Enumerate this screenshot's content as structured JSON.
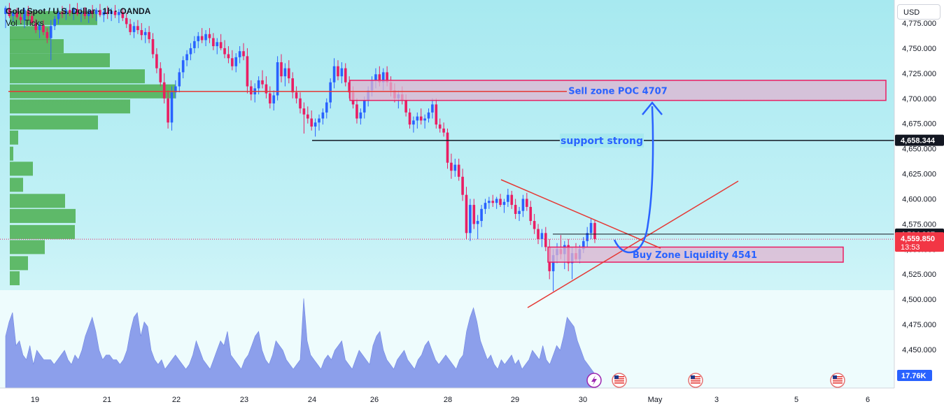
{
  "header": {
    "title": "Gold Spot / U.S. Dollar · 1h · OANDA",
    "indicator": "Vol · Ticks",
    "currency_button": "USD"
  },
  "colors": {
    "up": "#2962ff",
    "down": "#e91e63",
    "volume_profile": "#4caf50",
    "volume_area": "#7b8fe8",
    "zone_fill": "#e0b4d0",
    "zone_border": "#e91e63",
    "annotation_text": "#2962ff"
  },
  "chart_data": {
    "type": "candlestick",
    "symbol": "XAUUSD",
    "ylim": [
      4440,
      4790
    ],
    "y_ticks": [
      4450,
      4475,
      4500,
      4525,
      4550,
      4575,
      4600,
      4625,
      4650,
      4675,
      4700,
      4725,
      4750,
      4775
    ],
    "y_tick_labels": [
      "4,450.000",
      "4,475.000",
      "4,500.000",
      "4,525.000",
      "4,550.000",
      "4,575.000",
      "4,600.000",
      "4,625.000",
      "4,650.000",
      "4,675.000",
      "4,700.000",
      "4,725.000",
      "4,750.000",
      "4,775.000"
    ],
    "x_labels": [
      "19",
      "21",
      "22",
      "23",
      "24",
      "26",
      "28",
      "29",
      "30",
      "May",
      "3",
      "5",
      "6"
    ],
    "price_lines": [
      {
        "label": "4,658.344",
        "value": 4658.344,
        "style": "black"
      },
      {
        "label": "4,564.937",
        "value": 4564.937,
        "style": "black"
      },
      {
        "label": "4,559.850",
        "value": 4559.85,
        "style": "last",
        "countdown": "13:53"
      }
    ],
    "volume_label": "17.76K",
    "annotations": {
      "sell_zone": {
        "label": "Sell zone POC 4707",
        "top": 4718,
        "bottom": 4698
      },
      "buy_zone": {
        "label": "Buy Zone Liquidity 4541",
        "top": 4552,
        "bottom": 4537
      },
      "support": {
        "label": "support strong",
        "value": 4658
      },
      "poc_line": 4707
    },
    "volume_profile": [
      {
        "price": 4780,
        "vol": 125
      },
      {
        "price": 4765,
        "vol": 58
      },
      {
        "price": 4752,
        "vol": 77
      },
      {
        "price": 4738,
        "vol": 143
      },
      {
        "price": 4722,
        "vol": 193
      },
      {
        "price": 4707,
        "vol": 237
      },
      {
        "price": 4692,
        "vol": 172
      },
      {
        "price": 4676,
        "vol": 126
      },
      {
        "price": 4661,
        "vol": 12
      },
      {
        "price": 4645,
        "vol": 5
      },
      {
        "price": 4630,
        "vol": 33
      },
      {
        "price": 4614,
        "vol": 19
      },
      {
        "price": 4598,
        "vol": 79
      },
      {
        "price": 4583,
        "vol": 94
      },
      {
        "price": 4567,
        "vol": 93
      },
      {
        "price": 4552,
        "vol": 50
      },
      {
        "price": 4536,
        "vol": 26
      },
      {
        "price": 4521,
        "vol": 14
      }
    ],
    "candles": [
      {
        "o": 4784,
        "h": 4792,
        "l": 4770,
        "c": 4790
      },
      {
        "o": 4790,
        "h": 4795,
        "l": 4780,
        "c": 4782
      },
      {
        "o": 4782,
        "h": 4788,
        "l": 4776,
        "c": 4786
      },
      {
        "o": 4786,
        "h": 4790,
        "l": 4779,
        "c": 4781
      },
      {
        "o": 4781,
        "h": 4785,
        "l": 4774,
        "c": 4778
      },
      {
        "o": 4778,
        "h": 4790,
        "l": 4770,
        "c": 4788
      },
      {
        "o": 4788,
        "h": 4792,
        "l": 4778,
        "c": 4782
      },
      {
        "o": 4782,
        "h": 4787,
        "l": 4772,
        "c": 4775
      },
      {
        "o": 4775,
        "h": 4779,
        "l": 4765,
        "c": 4768
      },
      {
        "o": 4768,
        "h": 4776,
        "l": 4760,
        "c": 4773
      },
      {
        "o": 4773,
        "h": 4778,
        "l": 4763,
        "c": 4766
      },
      {
        "o": 4766,
        "h": 4770,
        "l": 4755,
        "c": 4760
      },
      {
        "o": 4760,
        "h": 4778,
        "l": 4738,
        "c": 4772
      },
      {
        "o": 4772,
        "h": 4782,
        "l": 4768,
        "c": 4779
      },
      {
        "o": 4779,
        "h": 4788,
        "l": 4774,
        "c": 4786
      },
      {
        "o": 4786,
        "h": 4792,
        "l": 4780,
        "c": 4784
      },
      {
        "o": 4784,
        "h": 4790,
        "l": 4778,
        "c": 4788
      },
      {
        "o": 4788,
        "h": 4794,
        "l": 4782,
        "c": 4785
      },
      {
        "o": 4785,
        "h": 4791,
        "l": 4778,
        "c": 4789
      },
      {
        "o": 4789,
        "h": 4795,
        "l": 4782,
        "c": 4784
      },
      {
        "o": 4784,
        "h": 4790,
        "l": 4776,
        "c": 4786
      },
      {
        "o": 4786,
        "h": 4791,
        "l": 4779,
        "c": 4782
      },
      {
        "o": 4782,
        "h": 4789,
        "l": 4775,
        "c": 4787
      },
      {
        "o": 4787,
        "h": 4793,
        "l": 4780,
        "c": 4784
      },
      {
        "o": 4784,
        "h": 4790,
        "l": 4777,
        "c": 4788
      },
      {
        "o": 4788,
        "h": 4794,
        "l": 4781,
        "c": 4783
      },
      {
        "o": 4783,
        "h": 4789,
        "l": 4776,
        "c": 4786
      },
      {
        "o": 4786,
        "h": 4792,
        "l": 4779,
        "c": 4784
      },
      {
        "o": 4784,
        "h": 4790,
        "l": 4777,
        "c": 4787
      },
      {
        "o": 4787,
        "h": 4793,
        "l": 4780,
        "c": 4783
      },
      {
        "o": 4783,
        "h": 4789,
        "l": 4775,
        "c": 4786
      },
      {
        "o": 4786,
        "h": 4790,
        "l": 4777,
        "c": 4780
      },
      {
        "o": 4780,
        "h": 4785,
        "l": 4770,
        "c": 4774
      },
      {
        "o": 4774,
        "h": 4779,
        "l": 4763,
        "c": 4766
      },
      {
        "o": 4766,
        "h": 4776,
        "l": 4760,
        "c": 4772
      },
      {
        "o": 4772,
        "h": 4778,
        "l": 4764,
        "c": 4768
      },
      {
        "o": 4768,
        "h": 4775,
        "l": 4758,
        "c": 4763
      },
      {
        "o": 4763,
        "h": 4770,
        "l": 4755,
        "c": 4766
      },
      {
        "o": 4766,
        "h": 4772,
        "l": 4755,
        "c": 4759
      },
      {
        "o": 4759,
        "h": 4765,
        "l": 4740,
        "c": 4744
      },
      {
        "o": 4744,
        "h": 4750,
        "l": 4725,
        "c": 4730
      },
      {
        "o": 4730,
        "h": 4736,
        "l": 4712,
        "c": 4716
      },
      {
        "o": 4716,
        "h": 4725,
        "l": 4695,
        "c": 4700
      },
      {
        "o": 4700,
        "h": 4708,
        "l": 4670,
        "c": 4676
      },
      {
        "o": 4676,
        "h": 4712,
        "l": 4668,
        "c": 4706
      },
      {
        "o": 4706,
        "h": 4718,
        "l": 4700,
        "c": 4712
      },
      {
        "o": 4712,
        "h": 4730,
        "l": 4706,
        "c": 4726
      },
      {
        "o": 4726,
        "h": 4742,
        "l": 4720,
        "c": 4738
      },
      {
        "o": 4738,
        "h": 4748,
        "l": 4732,
        "c": 4744
      },
      {
        "o": 4744,
        "h": 4755,
        "l": 4738,
        "c": 4750
      },
      {
        "o": 4750,
        "h": 4762,
        "l": 4745,
        "c": 4757
      },
      {
        "o": 4757,
        "h": 4766,
        "l": 4750,
        "c": 4762
      },
      {
        "o": 4762,
        "h": 4770,
        "l": 4755,
        "c": 4758
      },
      {
        "o": 4758,
        "h": 4768,
        "l": 4752,
        "c": 4764
      },
      {
        "o": 4764,
        "h": 4770,
        "l": 4755,
        "c": 4760
      },
      {
        "o": 4760,
        "h": 4765,
        "l": 4748,
        "c": 4752
      },
      {
        "o": 4752,
        "h": 4760,
        "l": 4744,
        "c": 4756
      },
      {
        "o": 4756,
        "h": 4764,
        "l": 4748,
        "c": 4750
      },
      {
        "o": 4750,
        "h": 4758,
        "l": 4740,
        "c": 4744
      },
      {
        "o": 4744,
        "h": 4752,
        "l": 4735,
        "c": 4740
      },
      {
        "o": 4740,
        "h": 4748,
        "l": 4728,
        "c": 4732
      },
      {
        "o": 4732,
        "h": 4745,
        "l": 4726,
        "c": 4741
      },
      {
        "o": 4741,
        "h": 4752,
        "l": 4735,
        "c": 4747
      },
      {
        "o": 4747,
        "h": 4755,
        "l": 4738,
        "c": 4742
      },
      {
        "o": 4742,
        "h": 4750,
        "l": 4705,
        "c": 4712
      },
      {
        "o": 4712,
        "h": 4718,
        "l": 4698,
        "c": 4704
      },
      {
        "o": 4704,
        "h": 4715,
        "l": 4696,
        "c": 4710
      },
      {
        "o": 4710,
        "h": 4722,
        "l": 4704,
        "c": 4718
      },
      {
        "o": 4718,
        "h": 4728,
        "l": 4710,
        "c": 4714
      },
      {
        "o": 4714,
        "h": 4722,
        "l": 4700,
        "c": 4705
      },
      {
        "o": 4705,
        "h": 4712,
        "l": 4690,
        "c": 4695
      },
      {
        "o": 4695,
        "h": 4708,
        "l": 4688,
        "c": 4703
      },
      {
        "o": 4703,
        "h": 4742,
        "l": 4698,
        "c": 4736
      },
      {
        "o": 4736,
        "h": 4744,
        "l": 4716,
        "c": 4722
      },
      {
        "o": 4722,
        "h": 4735,
        "l": 4712,
        "c": 4730
      },
      {
        "o": 4730,
        "h": 4738,
        "l": 4715,
        "c": 4720
      },
      {
        "o": 4720,
        "h": 4726,
        "l": 4700,
        "c": 4706
      },
      {
        "o": 4706,
        "h": 4712,
        "l": 4695,
        "c": 4700
      },
      {
        "o": 4700,
        "h": 4706,
        "l": 4685,
        "c": 4690
      },
      {
        "o": 4690,
        "h": 4696,
        "l": 4665,
        "c": 4684
      },
      {
        "o": 4684,
        "h": 4692,
        "l": 4675,
        "c": 4680
      },
      {
        "o": 4680,
        "h": 4688,
        "l": 4668,
        "c": 4672
      },
      {
        "o": 4672,
        "h": 4680,
        "l": 4662,
        "c": 4676
      },
      {
        "o": 4676,
        "h": 4684,
        "l": 4668,
        "c": 4680
      },
      {
        "o": 4680,
        "h": 4690,
        "l": 4674,
        "c": 4686
      },
      {
        "o": 4686,
        "h": 4700,
        "l": 4680,
        "c": 4696
      },
      {
        "o": 4696,
        "h": 4720,
        "l": 4690,
        "c": 4716
      },
      {
        "o": 4716,
        "h": 4740,
        "l": 4710,
        "c": 4732
      },
      {
        "o": 4732,
        "h": 4738,
        "l": 4718,
        "c": 4722
      },
      {
        "o": 4722,
        "h": 4736,
        "l": 4715,
        "c": 4730
      },
      {
        "o": 4730,
        "h": 4735,
        "l": 4712,
        "c": 4716
      },
      {
        "o": 4716,
        "h": 4722,
        "l": 4700,
        "c": 4706
      },
      {
        "o": 4706,
        "h": 4712,
        "l": 4690,
        "c": 4694
      },
      {
        "o": 4694,
        "h": 4700,
        "l": 4675,
        "c": 4680
      },
      {
        "o": 4680,
        "h": 4690,
        "l": 4674,
        "c": 4686
      },
      {
        "o": 4686,
        "h": 4702,
        "l": 4680,
        "c": 4698
      },
      {
        "o": 4698,
        "h": 4712,
        "l": 4692,
        "c": 4708
      },
      {
        "o": 4708,
        "h": 4722,
        "l": 4702,
        "c": 4718
      },
      {
        "o": 4718,
        "h": 4730,
        "l": 4710,
        "c": 4724
      },
      {
        "o": 4724,
        "h": 4732,
        "l": 4712,
        "c": 4716
      },
      {
        "o": 4716,
        "h": 4730,
        "l": 4708,
        "c": 4726
      },
      {
        "o": 4726,
        "h": 4732,
        "l": 4712,
        "c": 4716
      },
      {
        "o": 4716,
        "h": 4722,
        "l": 4702,
        "c": 4708
      },
      {
        "o": 4708,
        "h": 4715,
        "l": 4696,
        "c": 4700
      },
      {
        "o": 4700,
        "h": 4708,
        "l": 4690,
        "c": 4704
      },
      {
        "o": 4704,
        "h": 4712,
        "l": 4694,
        "c": 4698
      },
      {
        "o": 4698,
        "h": 4704,
        "l": 4682,
        "c": 4686
      },
      {
        "o": 4686,
        "h": 4690,
        "l": 4670,
        "c": 4674
      },
      {
        "o": 4674,
        "h": 4682,
        "l": 4666,
        "c": 4678
      },
      {
        "o": 4678,
        "h": 4686,
        "l": 4670,
        "c": 4682
      },
      {
        "o": 4682,
        "h": 4690,
        "l": 4674,
        "c": 4678
      },
      {
        "o": 4678,
        "h": 4684,
        "l": 4670,
        "c": 4680
      },
      {
        "o": 4680,
        "h": 4690,
        "l": 4676,
        "c": 4686
      },
      {
        "o": 4686,
        "h": 4700,
        "l": 4680,
        "c": 4694
      },
      {
        "o": 4694,
        "h": 4700,
        "l": 4670,
        "c": 4674
      },
      {
        "o": 4674,
        "h": 4680,
        "l": 4666,
        "c": 4670
      },
      {
        "o": 4670,
        "h": 4676,
        "l": 4662,
        "c": 4666
      },
      {
        "o": 4666,
        "h": 4670,
        "l": 4630,
        "c": 4636
      },
      {
        "o": 4636,
        "h": 4645,
        "l": 4620,
        "c": 4628
      },
      {
        "o": 4628,
        "h": 4640,
        "l": 4622,
        "c": 4634
      },
      {
        "o": 4634,
        "h": 4640,
        "l": 4618,
        "c": 4622
      },
      {
        "o": 4622,
        "h": 4630,
        "l": 4598,
        "c": 4604
      },
      {
        "o": 4604,
        "h": 4612,
        "l": 4560,
        "c": 4566
      },
      {
        "o": 4566,
        "h": 4600,
        "l": 4558,
        "c": 4594
      },
      {
        "o": 4594,
        "h": 4600,
        "l": 4570,
        "c": 4575
      },
      {
        "o": 4575,
        "h": 4584,
        "l": 4560,
        "c": 4578
      },
      {
        "o": 4578,
        "h": 4594,
        "l": 4572,
        "c": 4590
      },
      {
        "o": 4590,
        "h": 4600,
        "l": 4585,
        "c": 4596
      },
      {
        "o": 4596,
        "h": 4602,
        "l": 4590,
        "c": 4598
      },
      {
        "o": 4598,
        "h": 4604,
        "l": 4592,
        "c": 4596
      },
      {
        "o": 4596,
        "h": 4602,
        "l": 4590,
        "c": 4600
      },
      {
        "o": 4600,
        "h": 4605,
        "l": 4592,
        "c": 4594
      },
      {
        "o": 4594,
        "h": 4600,
        "l": 4586,
        "c": 4597
      },
      {
        "o": 4597,
        "h": 4610,
        "l": 4592,
        "c": 4604
      },
      {
        "o": 4604,
        "h": 4608,
        "l": 4590,
        "c": 4594
      },
      {
        "o": 4594,
        "h": 4600,
        "l": 4580,
        "c": 4585
      },
      {
        "o": 4585,
        "h": 4592,
        "l": 4578,
        "c": 4588
      },
      {
        "o": 4588,
        "h": 4604,
        "l": 4582,
        "c": 4600
      },
      {
        "o": 4600,
        "h": 4606,
        "l": 4588,
        "c": 4592
      },
      {
        "o": 4592,
        "h": 4598,
        "l": 4574,
        "c": 4578
      },
      {
        "o": 4578,
        "h": 4585,
        "l": 4565,
        "c": 4570
      },
      {
        "o": 4570,
        "h": 4575,
        "l": 4555,
        "c": 4560
      },
      {
        "o": 4560,
        "h": 4570,
        "l": 4552,
        "c": 4566
      },
      {
        "o": 4566,
        "h": 4572,
        "l": 4548,
        "c": 4552
      },
      {
        "o": 4552,
        "h": 4560,
        "l": 4520,
        "c": 4528
      },
      {
        "o": 4528,
        "h": 4550,
        "l": 4508,
        "c": 4544
      },
      {
        "o": 4544,
        "h": 4556,
        "l": 4536,
        "c": 4550
      },
      {
        "o": 4550,
        "h": 4564,
        "l": 4540,
        "c": 4545
      },
      {
        "o": 4545,
        "h": 4558,
        "l": 4530,
        "c": 4554
      },
      {
        "o": 4554,
        "h": 4560,
        "l": 4528,
        "c": 4536
      },
      {
        "o": 4536,
        "h": 4552,
        "l": 4520,
        "c": 4546
      },
      {
        "o": 4546,
        "h": 4556,
        "l": 4538,
        "c": 4540
      },
      {
        "o": 4540,
        "h": 4554,
        "l": 4536,
        "c": 4550
      },
      {
        "o": 4550,
        "h": 4562,
        "l": 4546,
        "c": 4558
      },
      {
        "o": 4558,
        "h": 4572,
        "l": 4552,
        "c": 4566
      },
      {
        "o": 4566,
        "h": 4580,
        "l": 4560,
        "c": 4576
      },
      {
        "o": 4576,
        "h": 4579,
        "l": 4556,
        "c": 4560
      }
    ],
    "volume": [
      0.55,
      0.7,
      0.8,
      0.45,
      0.5,
      0.35,
      0.3,
      0.45,
      0.25,
      0.4,
      0.35,
      0.3,
      0.3,
      0.3,
      0.25,
      0.3,
      0.35,
      0.4,
      0.3,
      0.25,
      0.35,
      0.3,
      0.4,
      0.55,
      0.65,
      0.75,
      0.6,
      0.4,
      0.3,
      0.35,
      0.35,
      0.3,
      0.3,
      0.25,
      0.3,
      0.4,
      0.6,
      0.75,
      0.8,
      0.55,
      0.7,
      0.65,
      0.4,
      0.3,
      0.25,
      0.3,
      0.2,
      0.25,
      0.3,
      0.35,
      0.3,
      0.25,
      0.2,
      0.25,
      0.35,
      0.5,
      0.4,
      0.3,
      0.25,
      0.2,
      0.3,
      0.4,
      0.5,
      0.45,
      0.6,
      0.35,
      0.3,
      0.25,
      0.2,
      0.3,
      0.35,
      0.45,
      0.55,
      0.6,
      0.4,
      0.3,
      0.25,
      0.35,
      0.5,
      0.45,
      0.4,
      0.3,
      0.25,
      0.2,
      0.25,
      0.3,
      0.95,
      0.5,
      0.35,
      0.3,
      0.25,
      0.2,
      0.3,
      0.35,
      0.3,
      0.4,
      0.45,
      0.5,
      0.3,
      0.25,
      0.2,
      0.3,
      0.4,
      0.35,
      0.3,
      0.25,
      0.45,
      0.55,
      0.6,
      0.4,
      0.3,
      0.25,
      0.2,
      0.3,
      0.35,
      0.4,
      0.3,
      0.25,
      0.2,
      0.3,
      0.35,
      0.45,
      0.5,
      0.4,
      0.3,
      0.25,
      0.3,
      0.35,
      0.3,
      0.25,
      0.2,
      0.3,
      0.35,
      0.6,
      0.75,
      0.85,
      0.7,
      0.5,
      0.4,
      0.3,
      0.35,
      0.25,
      0.2,
      0.3,
      0.25,
      0.3,
      0.35,
      0.25,
      0.3,
      0.2,
      0.25,
      0.3,
      0.4,
      0.35,
      0.3,
      0.45,
      0.3,
      0.25,
      0.35,
      0.45,
      0.4,
      0.55,
      0.75,
      0.7,
      0.65,
      0.5,
      0.4,
      0.3,
      0.25,
      0.2,
      0.15
    ]
  }
}
